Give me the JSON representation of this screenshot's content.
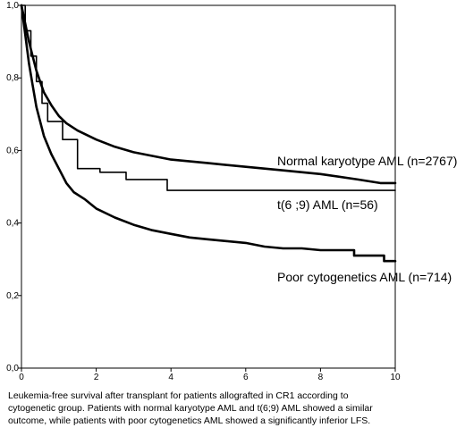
{
  "chart_data": {
    "type": "line",
    "title": "",
    "xlabel": "",
    "ylabel": "",
    "xlim": [
      0,
      10
    ],
    "ylim": [
      0,
      1
    ],
    "x_ticks": [
      "0",
      "2",
      "4",
      "6",
      "8",
      "10"
    ],
    "y_ticks": [
      "0,0",
      "0,2",
      "0,4",
      "0,6",
      "0,8",
      "1,0"
    ],
    "grid": false,
    "legend": "none",
    "series": [
      {
        "name": "Normal karyotype AML (n=2767)",
        "color": "#000000",
        "x": [
          0,
          0.1,
          0.2,
          0.3,
          0.4,
          0.5,
          0.6,
          0.8,
          1.0,
          1.2,
          1.5,
          2.0,
          2.5,
          3.0,
          3.5,
          4.0,
          5.0,
          6.0,
          7.0,
          8.0,
          9.0,
          9.6,
          10
        ],
        "y": [
          1.0,
          0.95,
          0.9,
          0.86,
          0.82,
          0.79,
          0.76,
          0.725,
          0.695,
          0.675,
          0.655,
          0.63,
          0.61,
          0.595,
          0.585,
          0.575,
          0.565,
          0.555,
          0.545,
          0.535,
          0.52,
          0.51,
          0.51
        ]
      },
      {
        "name": "t(6 ;9) AML (n=56)",
        "color": "#000000",
        "step": true,
        "x": [
          0,
          0.1,
          0.25,
          0.4,
          0.55,
          0.7,
          1.1,
          1.5,
          2.1,
          2.8,
          3.9,
          10
        ],
        "y": [
          1.0,
          0.93,
          0.86,
          0.79,
          0.73,
          0.68,
          0.63,
          0.55,
          0.54,
          0.52,
          0.49,
          0.49
        ]
      },
      {
        "name": "Poor cytogenetics AML (n=714)",
        "color": "#000000",
        "x": [
          0,
          0.1,
          0.2,
          0.3,
          0.4,
          0.5,
          0.6,
          0.8,
          1.0,
          1.2,
          1.4,
          1.7,
          2.0,
          2.5,
          3.0,
          3.5,
          4.0,
          4.5,
          5.0,
          5.5,
          6.0,
          6.5,
          7.0,
          7.5,
          8.0,
          8.9,
          8.9,
          9.7,
          9.7,
          10
        ],
        "y": [
          1.0,
          0.92,
          0.84,
          0.78,
          0.72,
          0.68,
          0.64,
          0.59,
          0.55,
          0.51,
          0.485,
          0.465,
          0.44,
          0.415,
          0.395,
          0.38,
          0.37,
          0.36,
          0.355,
          0.35,
          0.345,
          0.335,
          0.33,
          0.33,
          0.325,
          0.325,
          0.31,
          0.31,
          0.295,
          0.295
        ]
      }
    ]
  },
  "caption": "Leukemia-free survival after transplant for patients allografted in CR1 according to\ncytogenetic group. Patients with normal karyotype AML and t(6;9) AML showed a similar\noutcome, while patients with poor cytogenetics AML showed a significantly inferior LFS."
}
